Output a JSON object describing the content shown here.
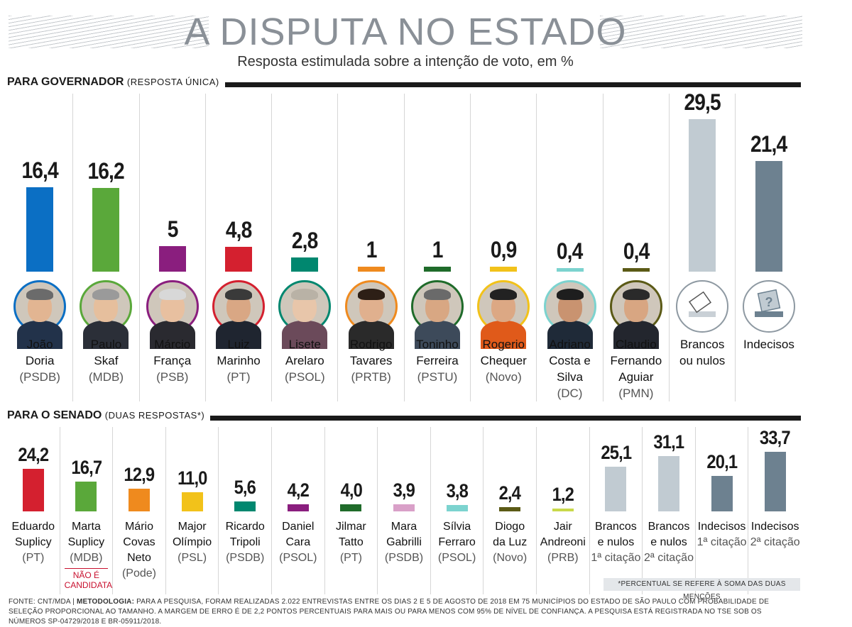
{
  "header": {
    "title": "A DISPUTA NO ESTADO",
    "subtitle": "Resposta estimulada sobre a intenção de voto, em %"
  },
  "chart_data": [
    {
      "type": "bar",
      "title": "PARA GOVERNADOR",
      "title_note": "(RESPOSTA ÚNICA)",
      "categories": [
        "João Doria",
        "Paulo Skaf",
        "Márcio França",
        "Luiz Marinho",
        "Lisete Arelaro",
        "Rodrigo Tavares",
        "Toninho Ferreira",
        "Rogerio Chequer",
        "Adriano Costa e Silva",
        "Claudio Fernando Aguiar",
        "Brancos ou nulos",
        "Indecisos"
      ],
      "values": [
        16.4,
        16.2,
        5,
        4.8,
        2.8,
        1,
        1,
        0.9,
        0.4,
        0.4,
        29.5,
        21.4
      ],
      "value_labels": [
        "16,4",
        "16,2",
        "5",
        "4,8",
        "2,8",
        "1",
        "1",
        "0,9",
        "0,4",
        "0,4",
        "29,5",
        "21,4"
      ],
      "items": [
        {
          "name": "João\nDoria",
          "party": "(PSDB)",
          "color": "#0b6fc4",
          "avatar": "portrait-joao-doria",
          "skin": "#e2b592",
          "hair": "#6b6b6b",
          "suit": "#22324a"
        },
        {
          "name": "Paulo\nSkaf",
          "party": "(MDB)",
          "color": "#5aa83a",
          "avatar": "portrait-paulo-skaf",
          "skin": "#e6bf9d",
          "hair": "#9a9a9a",
          "suit": "#2b2f38"
        },
        {
          "name": "Márcio\nFrança",
          "party": "(PSB)",
          "color": "#8a1e7e",
          "avatar": "portrait-marcio-franca",
          "skin": "#e8c0a0",
          "hair": "#d8d8d8",
          "suit": "#2a2a30"
        },
        {
          "name": "Luiz\nMarinho",
          "party": "(PT)",
          "color": "#d4202f",
          "avatar": "portrait-luiz-marinho",
          "skin": "#d9a784",
          "hair": "#3a3a3a",
          "suit": "#1f2530"
        },
        {
          "name": "Lisete\nArelaro",
          "party": "(PSOL)",
          "color": "#00876f",
          "avatar": "portrait-lisete-arelaro",
          "skin": "#e8c6aa",
          "hair": "#b9b2a6",
          "suit": "#6b4a5a"
        },
        {
          "name": "Rodrigo\nTavares",
          "party": "(PRTB)",
          "color": "#ef8a1e",
          "avatar": "portrait-rodrigo-tavares",
          "skin": "#e0b08e",
          "hair": "#2d1f16",
          "suit": "#2a2a2a"
        },
        {
          "name": "Toninho\nFerreira",
          "party": "(PSTU)",
          "color": "#1f6b2a",
          "avatar": "portrait-toninho-ferreira",
          "skin": "#d8a783",
          "hair": "#6a6a6a",
          "suit": "#3d4a5a"
        },
        {
          "name": "Rogerio\nChequer",
          "party": "(Novo)",
          "color": "#f2c21a",
          "avatar": "portrait-rogerio-chequer",
          "skin": "#dca884",
          "hair": "#222222",
          "suit": "#e05a1a"
        },
        {
          "name": "Adriano\nCosta e\nSilva",
          "party": "(DC)",
          "color": "#7cd3cf",
          "avatar": "portrait-adriano-costa-e-silva",
          "skin": "#c99370",
          "hair": "#1e1e1e",
          "suit": "#1f2a38"
        },
        {
          "name": "Claudio\nFernando\nAguiar",
          "party": "(PMN)",
          "color": "#5b5a16",
          "avatar": "portrait-claudio-fernando-aguiar",
          "skin": "#d8a682",
          "hair": "#2a2a2a",
          "suit": "#23262e"
        },
        {
          "name": "Brancos\nou nulos",
          "party": "",
          "color": "#c1cbd2",
          "avatar": "ballot-box-icon"
        },
        {
          "name": "Indecisos",
          "party": "",
          "color": "#6d8190",
          "avatar": "question-ballot-icon"
        }
      ]
    },
    {
      "type": "bar",
      "title": "PARA O SENADO",
      "title_note": "(DUAS RESPOSTAS*)",
      "categories": [
        "Eduardo Suplicy",
        "Marta Suplicy",
        "Mário Covas Neto",
        "Major Olímpio",
        "Ricardo Tripoli",
        "Daniel Cara",
        "Jilmar Tatto",
        "Mara Gabrilli",
        "Sílvia Ferraro",
        "Diogo da Luz",
        "Jair Andreoni",
        "Brancos e nulos 1ª citação",
        "Brancos e nulos 2ª citação",
        "Indecisos 1ª citação",
        "Indecisos 2ª citação"
      ],
      "values": [
        24.2,
        16.7,
        12.9,
        11.0,
        5.6,
        4.2,
        4.0,
        3.9,
        3.8,
        2.4,
        1.2,
        25.1,
        31.1,
        20.1,
        33.7
      ],
      "value_labels": [
        "24,2",
        "16,7",
        "12,9",
        "11,0",
        "5,6",
        "4,2",
        "4,0",
        "3,9",
        "3,8",
        "2,4",
        "1,2",
        "25,1",
        "31,1",
        "20,1",
        "33,7"
      ],
      "items": [
        {
          "name": "Eduardo\nSuplicy",
          "party": "(PT)",
          "color": "#d4202f",
          "bold": true
        },
        {
          "name": "Marta\nSuplicy",
          "party": "(MDB)",
          "color": "#5aa83a",
          "bold": false,
          "note": "NÃO É\nCANDIDATA"
        },
        {
          "name": "Mário\nCovas\nNeto",
          "party": "(Pode)",
          "color": "#ef8a1e",
          "bold": true
        },
        {
          "name": "Major\nOlímpio",
          "party": "(PSL)",
          "color": "#f2c21a",
          "bold": false
        },
        {
          "name": "Ricardo\nTripoli",
          "party": "(PSDB)",
          "color": "#00876f",
          "bold": false
        },
        {
          "name": "Daniel\nCara",
          "party": "(PSOL)",
          "color": "#8a1e7e",
          "bold": false
        },
        {
          "name": "Jilmar\nTatto",
          "party": "(PT)",
          "color": "#1f6b2a",
          "bold": false
        },
        {
          "name": "Mara\nGabrilli",
          "party": "(PSDB)",
          "color": "#d9a0c8",
          "bold": false
        },
        {
          "name": "Sílvia\nFerraro",
          "party": "(PSOL)",
          "color": "#7cd3cf",
          "bold": false
        },
        {
          "name": "Diogo\nda Luz",
          "party": "(Novo)",
          "color": "#5b5a16",
          "bold": false
        },
        {
          "name": "Jair\nAndreoni",
          "party": "(PRB)",
          "color": "#c9d94a",
          "bold": false
        },
        {
          "name": "Brancos\ne nulos",
          "party": "1ª citação",
          "color": "#c1cbd2",
          "bold": false
        },
        {
          "name": "Brancos\ne nulos",
          "party": "2ª citação",
          "color": "#c1cbd2",
          "bold": false
        },
        {
          "name": "Indecisos",
          "party": "1ª citação",
          "color": "#6d8190",
          "bold": true
        },
        {
          "name": "Indecisos",
          "party": "2ª citação",
          "color": "#6d8190",
          "bold": false
        }
      ]
    }
  ],
  "note": "*PERCENTUAL SE REFERE À SOMA DAS DUAS MENÇÕES",
  "footer": {
    "source": "FONTE: CNT/MDA",
    "separator": "|",
    "method_label": "METODOLOGIA:",
    "method_text": "PARA A PESQUISA, FORAM REALIZADAS 2.022 ENTREVISTAS ENTRE OS DIAS 2 E 5 DE AGOSTO DE 2018 EM 75 MUNICÍPIOS DO ESTADO DE SÃO PAULO COM PROBABILIDADE DE SELEÇÃO PROPORCIONAL AO TAMANHO. A MARGEM DE ERRO É DE 2,2 PONTOS PERCENTUAIS PARA MAIS OU PARA MENOS COM 95% DE NÍVEL DE CONFIANÇA. A PESQUISA ESTÁ REGISTRADA NO TSE SOB OS NÚMEROS SP-04729/2018 E BR-05911/2018."
  }
}
